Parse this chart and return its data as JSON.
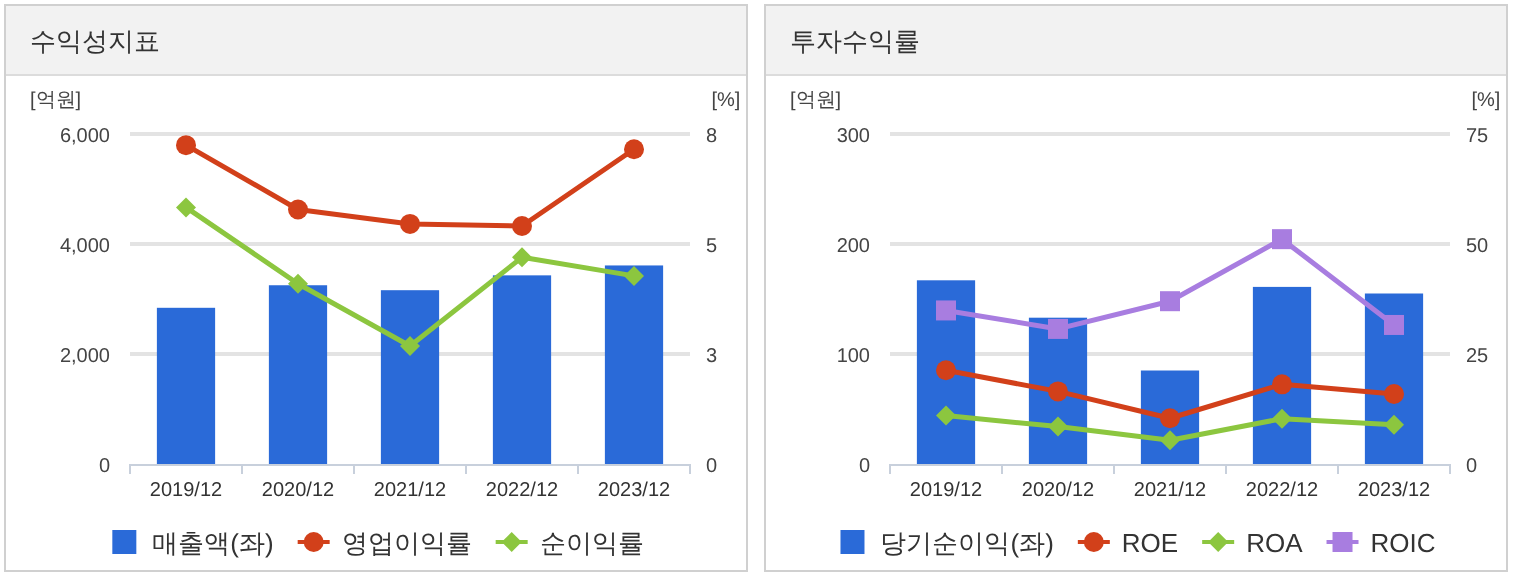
{
  "chart_data": [
    {
      "type": "bar",
      "title": "수익성지표",
      "ylabel": "[억원]",
      "y2label": "[%]",
      "categories": [
        "2019/12",
        "2020/12",
        "2021/12",
        "2022/12",
        "2023/12"
      ],
      "series": [
        {
          "name": "매출액(좌)",
          "color": "#2a6ad8",
          "values": [
            2840,
            3250,
            3160,
            3430,
            3610
          ]
        },
        {
          "name": "영업이익률",
          "type": "line",
          "axis": "y2",
          "marker": "circle",
          "color": "#d2401a",
          "values": [
            7.73,
            6.17,
            5.82,
            5.77,
            7.63
          ]
        },
        {
          "name": "순이익률",
          "type": "line",
          "axis": "y2",
          "marker": "diamond",
          "color": "#8cc63f",
          "values": [
            6.22,
            4.37,
            2.86,
            5.01,
            4.56
          ]
        }
      ],
      "ylim": [
        0,
        6000
      ],
      "yticks": [
        0,
        {
          "value": 2000,
          "label": "2,000"
        },
        {
          "value": 4000,
          "label": "4,000"
        },
        {
          "value": 6000,
          "label": "6,000"
        }
      ],
      "y2lim": [
        0,
        8
      ],
      "y2ticks": [
        0,
        {
          "value": 2.667,
          "label": "3"
        },
        {
          "value": 5.333,
          "label": "5"
        },
        8
      ],
      "grid": "y",
      "legend": "bottom"
    },
    {
      "type": "bar",
      "title": "투자수익률",
      "ylabel": "[억원]",
      "y2label": "[%]",
      "categories": [
        "2019/12",
        "2020/12",
        "2021/12",
        "2022/12",
        "2023/12"
      ],
      "series": [
        {
          "name": "당기순이익(좌)",
          "color": "#2a6ad8",
          "values": [
            167,
            133,
            85,
            161,
            155
          ]
        },
        {
          "name": "ROE",
          "type": "line",
          "axis": "y2",
          "marker": "circle",
          "color": "#d2401a",
          "values": [
            21.3,
            16.5,
            10.4,
            18.1,
            15.9
          ]
        },
        {
          "name": "ROA",
          "type": "line",
          "axis": "y2",
          "marker": "diamond",
          "color": "#8cc63f",
          "values": [
            11.0,
            8.5,
            5.4,
            10.3,
            8.9
          ]
        },
        {
          "name": "ROIC",
          "type": "line",
          "axis": "y2",
          "marker": "square",
          "color": "#a87de0",
          "values": [
            34.9,
            30.7,
            37.0,
            51.1,
            31.6
          ]
        }
      ],
      "ylim": [
        0,
        300
      ],
      "yticks": [
        0,
        100,
        200,
        300
      ],
      "y2lim": [
        0,
        75
      ],
      "y2ticks": [
        0,
        25,
        50,
        75
      ],
      "grid": "y",
      "legend": "bottom"
    }
  ]
}
